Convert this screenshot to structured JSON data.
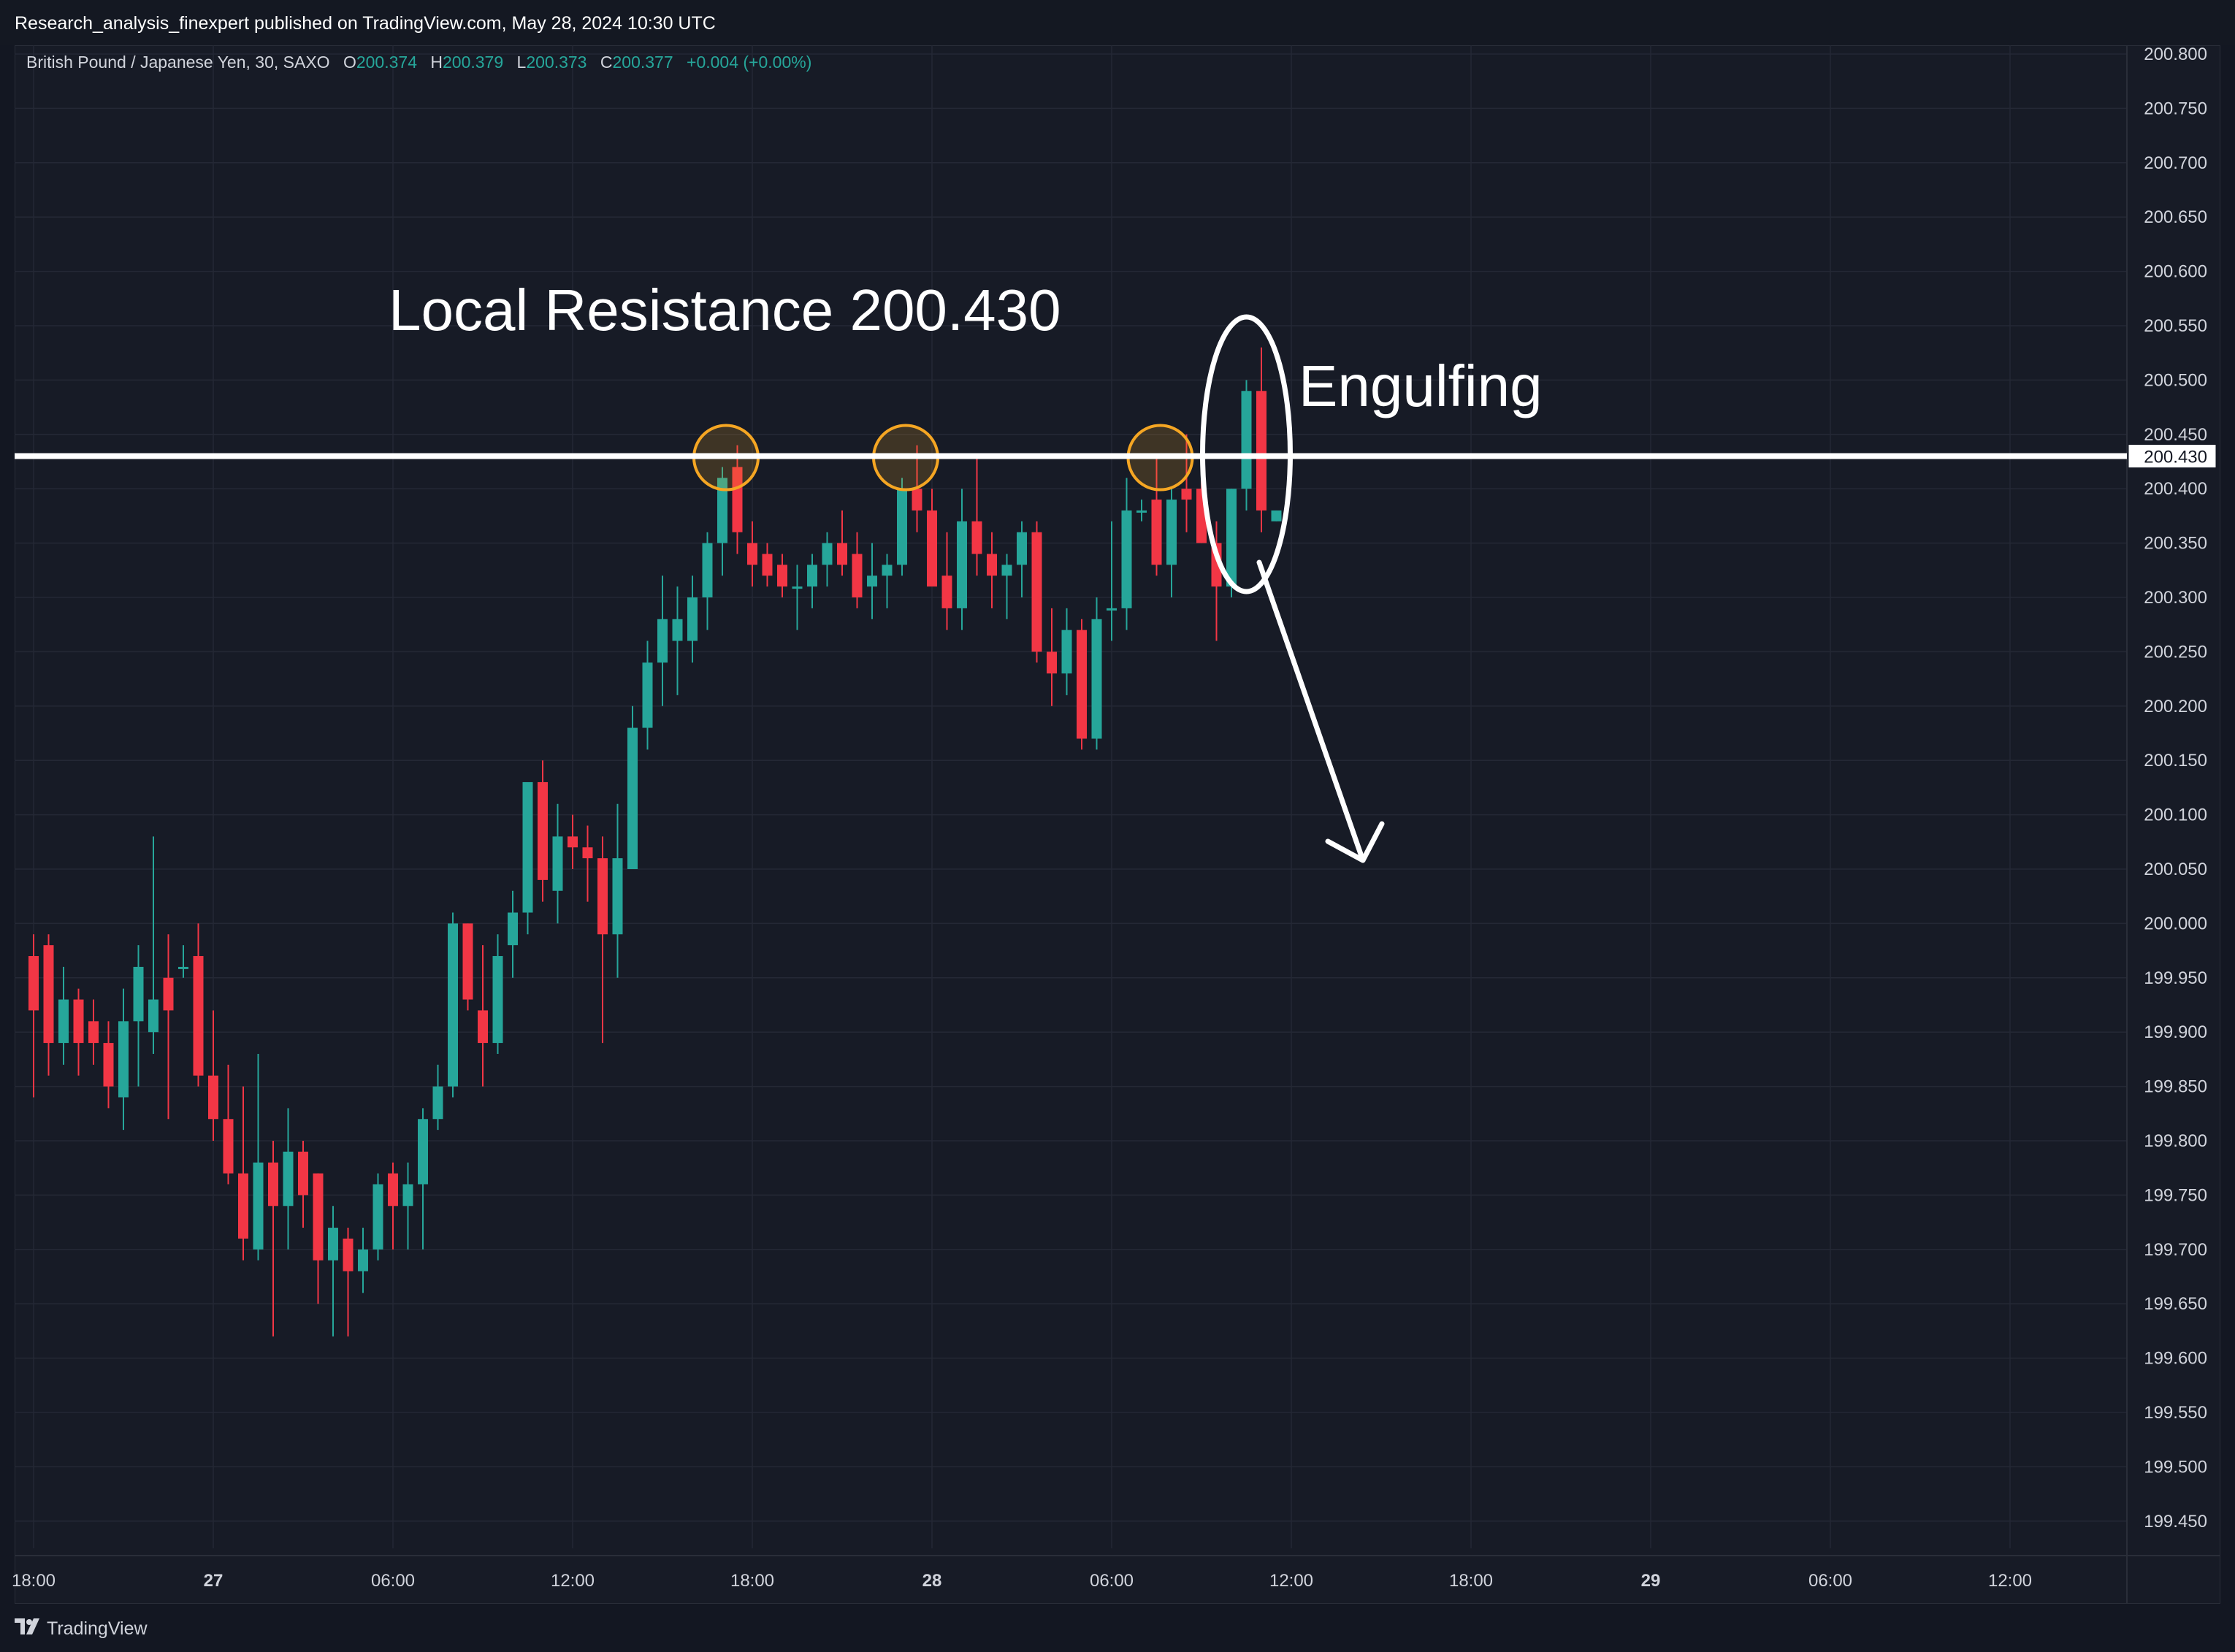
{
  "header": {
    "published_line": "Research_analysis_finexpert published on TradingView.com, May 28, 2024 10:30 UTC"
  },
  "legend": {
    "symbol": "British Pound / Japanese Yen, 30, SAXO",
    "o_label": "O",
    "o_value": "200.374",
    "h_label": "H",
    "h_value": "200.379",
    "l_label": "L",
    "l_value": "200.373",
    "c_label": "C",
    "c_value": "200.377",
    "change": "+0.004 (+0.00%)"
  },
  "footer": {
    "brand": "TradingView",
    "logo_icon": "tradingview-logo-icon"
  },
  "colors": {
    "background": "#131722",
    "up": "#26a69a",
    "down": "#f23645",
    "annotation": "#ffffff",
    "circle_highlight": "#f5a623",
    "grid": "#242835",
    "axis_text": "#d1d4dc"
  },
  "chart_data": {
    "type": "candlestick",
    "title": "British Pound / Japanese Yen, 30, SAXO",
    "ylim": [
      199.42,
      200.82
    ],
    "y_ticks": [
      "200.800",
      "200.750",
      "200.700",
      "200.650",
      "200.600",
      "200.550",
      "200.500",
      "200.450",
      "200.400",
      "200.350",
      "200.300",
      "200.250",
      "200.200",
      "200.150",
      "200.100",
      "200.050",
      "200.000",
      "199.950",
      "199.900",
      "199.850",
      "199.800",
      "199.750",
      "199.700",
      "199.650",
      "199.600",
      "199.550",
      "199.500",
      "199.450"
    ],
    "x_ticks": [
      "18:00",
      "27",
      "06:00",
      "12:00",
      "18:00",
      "28",
      "06:00",
      "12:00",
      "18:00",
      "29",
      "06:00",
      "12:00"
    ],
    "x_tick_bold": [
      false,
      true,
      false,
      false,
      false,
      true,
      false,
      false,
      false,
      true,
      false,
      false
    ],
    "x_tick_index": [
      0,
      12,
      24,
      36,
      48,
      60,
      72,
      84,
      96,
      108,
      120,
      132
    ],
    "resistance": {
      "value": 200.43,
      "label": "200.430"
    },
    "annotations": {
      "resistance_text": "Local Resistance 200.430",
      "engulfing_text": "Engulfing"
    },
    "highlight_circles_index": [
      46,
      58,
      75
    ],
    "engulfing_oval_index": 81,
    "candles": [
      {
        "o": 199.97,
        "h": 199.99,
        "l": 199.84,
        "c": 199.92
      },
      {
        "o": 199.98,
        "h": 199.99,
        "l": 199.86,
        "c": 199.89
      },
      {
        "o": 199.89,
        "h": 199.96,
        "l": 199.87,
        "c": 199.93
      },
      {
        "o": 199.93,
        "h": 199.94,
        "l": 199.86,
        "c": 199.89
      },
      {
        "o": 199.91,
        "h": 199.93,
        "l": 199.87,
        "c": 199.89
      },
      {
        "o": 199.89,
        "h": 199.91,
        "l": 199.83,
        "c": 199.85
      },
      {
        "o": 199.84,
        "h": 199.94,
        "l": 199.81,
        "c": 199.91
      },
      {
        "o": 199.91,
        "h": 199.98,
        "l": 199.85,
        "c": 199.96
      },
      {
        "o": 199.9,
        "h": 200.08,
        "l": 199.88,
        "c": 199.93
      },
      {
        "o": 199.95,
        "h": 199.99,
        "l": 199.82,
        "c": 199.92
      },
      {
        "o": 199.96,
        "h": 199.98,
        "l": 199.95,
        "c": 199.96
      },
      {
        "o": 199.97,
        "h": 200.0,
        "l": 199.85,
        "c": 199.86
      },
      {
        "o": 199.86,
        "h": 199.92,
        "l": 199.8,
        "c": 199.82
      },
      {
        "o": 199.82,
        "h": 199.87,
        "l": 199.76,
        "c": 199.77
      },
      {
        "o": 199.77,
        "h": 199.85,
        "l": 199.69,
        "c": 199.71
      },
      {
        "o": 199.7,
        "h": 199.88,
        "l": 199.69,
        "c": 199.78
      },
      {
        "o": 199.78,
        "h": 199.8,
        "l": 199.62,
        "c": 199.74
      },
      {
        "o": 199.74,
        "h": 199.83,
        "l": 199.7,
        "c": 199.79
      },
      {
        "o": 199.79,
        "h": 199.8,
        "l": 199.72,
        "c": 199.75
      },
      {
        "o": 199.77,
        "h": 199.77,
        "l": 199.65,
        "c": 199.69
      },
      {
        "o": 199.69,
        "h": 199.74,
        "l": 199.62,
        "c": 199.72
      },
      {
        "o": 199.71,
        "h": 199.72,
        "l": 199.62,
        "c": 199.68
      },
      {
        "o": 199.68,
        "h": 199.72,
        "l": 199.66,
        "c": 199.7
      },
      {
        "o": 199.7,
        "h": 199.77,
        "l": 199.69,
        "c": 199.76
      },
      {
        "o": 199.77,
        "h": 199.78,
        "l": 199.7,
        "c": 199.74
      },
      {
        "o": 199.74,
        "h": 199.78,
        "l": 199.7,
        "c": 199.76
      },
      {
        "o": 199.76,
        "h": 199.83,
        "l": 199.7,
        "c": 199.82
      },
      {
        "o": 199.82,
        "h": 199.87,
        "l": 199.81,
        "c": 199.85
      },
      {
        "o": 199.85,
        "h": 200.01,
        "l": 199.84,
        "c": 200.0
      },
      {
        "o": 200.0,
        "h": 200.0,
        "l": 199.92,
        "c": 199.93
      },
      {
        "o": 199.92,
        "h": 199.98,
        "l": 199.85,
        "c": 199.89
      },
      {
        "o": 199.89,
        "h": 199.99,
        "l": 199.88,
        "c": 199.97
      },
      {
        "o": 199.98,
        "h": 200.03,
        "l": 199.95,
        "c": 200.01
      },
      {
        "o": 200.01,
        "h": 200.13,
        "l": 199.99,
        "c": 200.13
      },
      {
        "o": 200.13,
        "h": 200.15,
        "l": 200.02,
        "c": 200.04
      },
      {
        "o": 200.03,
        "h": 200.11,
        "l": 200.0,
        "c": 200.08
      },
      {
        "o": 200.08,
        "h": 200.1,
        "l": 200.05,
        "c": 200.07
      },
      {
        "o": 200.07,
        "h": 200.09,
        "l": 200.02,
        "c": 200.06
      },
      {
        "o": 200.06,
        "h": 200.08,
        "l": 199.89,
        "c": 199.99
      },
      {
        "o": 199.99,
        "h": 200.11,
        "l": 199.95,
        "c": 200.06
      },
      {
        "o": 200.05,
        "h": 200.2,
        "l": 200.05,
        "c": 200.18
      },
      {
        "o": 200.18,
        "h": 200.26,
        "l": 200.16,
        "c": 200.24
      },
      {
        "o": 200.24,
        "h": 200.32,
        "l": 200.2,
        "c": 200.28
      },
      {
        "o": 200.26,
        "h": 200.31,
        "l": 200.21,
        "c": 200.28
      },
      {
        "o": 200.26,
        "h": 200.32,
        "l": 200.24,
        "c": 200.3
      },
      {
        "o": 200.3,
        "h": 200.36,
        "l": 200.27,
        "c": 200.35
      },
      {
        "o": 200.35,
        "h": 200.42,
        "l": 200.32,
        "c": 200.41
      },
      {
        "o": 200.42,
        "h": 200.44,
        "l": 200.34,
        "c": 200.36
      },
      {
        "o": 200.35,
        "h": 200.37,
        "l": 200.31,
        "c": 200.33
      },
      {
        "o": 200.34,
        "h": 200.35,
        "l": 200.31,
        "c": 200.32
      },
      {
        "o": 200.33,
        "h": 200.34,
        "l": 200.3,
        "c": 200.31
      },
      {
        "o": 200.31,
        "h": 200.33,
        "l": 200.27,
        "c": 200.31
      },
      {
        "o": 200.31,
        "h": 200.34,
        "l": 200.29,
        "c": 200.33
      },
      {
        "o": 200.33,
        "h": 200.36,
        "l": 200.31,
        "c": 200.35
      },
      {
        "o": 200.35,
        "h": 200.38,
        "l": 200.32,
        "c": 200.33
      },
      {
        "o": 200.34,
        "h": 200.36,
        "l": 200.29,
        "c": 200.3
      },
      {
        "o": 200.31,
        "h": 200.35,
        "l": 200.28,
        "c": 200.32
      },
      {
        "o": 200.32,
        "h": 200.34,
        "l": 200.29,
        "c": 200.33
      },
      {
        "o": 200.33,
        "h": 200.41,
        "l": 200.32,
        "c": 200.4
      },
      {
        "o": 200.4,
        "h": 200.44,
        "l": 200.36,
        "c": 200.38
      },
      {
        "o": 200.38,
        "h": 200.4,
        "l": 200.32,
        "c": 200.31
      },
      {
        "o": 200.32,
        "h": 200.36,
        "l": 200.27,
        "c": 200.29
      },
      {
        "o": 200.29,
        "h": 200.4,
        "l": 200.27,
        "c": 200.37
      },
      {
        "o": 200.37,
        "h": 200.43,
        "l": 200.32,
        "c": 200.34
      },
      {
        "o": 200.34,
        "h": 200.36,
        "l": 200.29,
        "c": 200.32
      },
      {
        "o": 200.32,
        "h": 200.34,
        "l": 200.28,
        "c": 200.33
      },
      {
        "o": 200.33,
        "h": 200.37,
        "l": 200.3,
        "c": 200.36
      },
      {
        "o": 200.36,
        "h": 200.37,
        "l": 200.24,
        "c": 200.25
      },
      {
        "o": 200.25,
        "h": 200.29,
        "l": 200.2,
        "c": 200.23
      },
      {
        "o": 200.23,
        "h": 200.29,
        "l": 200.21,
        "c": 200.27
      },
      {
        "o": 200.27,
        "h": 200.28,
        "l": 200.16,
        "c": 200.17
      },
      {
        "o": 200.17,
        "h": 200.3,
        "l": 200.16,
        "c": 200.28
      },
      {
        "o": 200.29,
        "h": 200.37,
        "l": 200.26,
        "c": 200.29
      },
      {
        "o": 200.29,
        "h": 200.41,
        "l": 200.27,
        "c": 200.38
      },
      {
        "o": 200.38,
        "h": 200.39,
        "l": 200.37,
        "c": 200.38
      },
      {
        "o": 200.39,
        "h": 200.43,
        "l": 200.32,
        "c": 200.33
      },
      {
        "o": 200.33,
        "h": 200.4,
        "l": 200.3,
        "c": 200.39
      },
      {
        "o": 200.4,
        "h": 200.45,
        "l": 200.36,
        "c": 200.39
      },
      {
        "o": 200.4,
        "h": 200.41,
        "l": 200.35,
        "c": 200.35
      },
      {
        "o": 200.35,
        "h": 200.37,
        "l": 200.26,
        "c": 200.31
      },
      {
        "o": 200.31,
        "h": 200.4,
        "l": 200.3,
        "c": 200.4
      },
      {
        "o": 200.4,
        "h": 200.5,
        "l": 200.38,
        "c": 200.49
      },
      {
        "o": 200.49,
        "h": 200.53,
        "l": 200.36,
        "c": 200.38
      },
      {
        "o": 200.37,
        "h": 200.38,
        "l": 200.37,
        "c": 200.38
      }
    ]
  }
}
